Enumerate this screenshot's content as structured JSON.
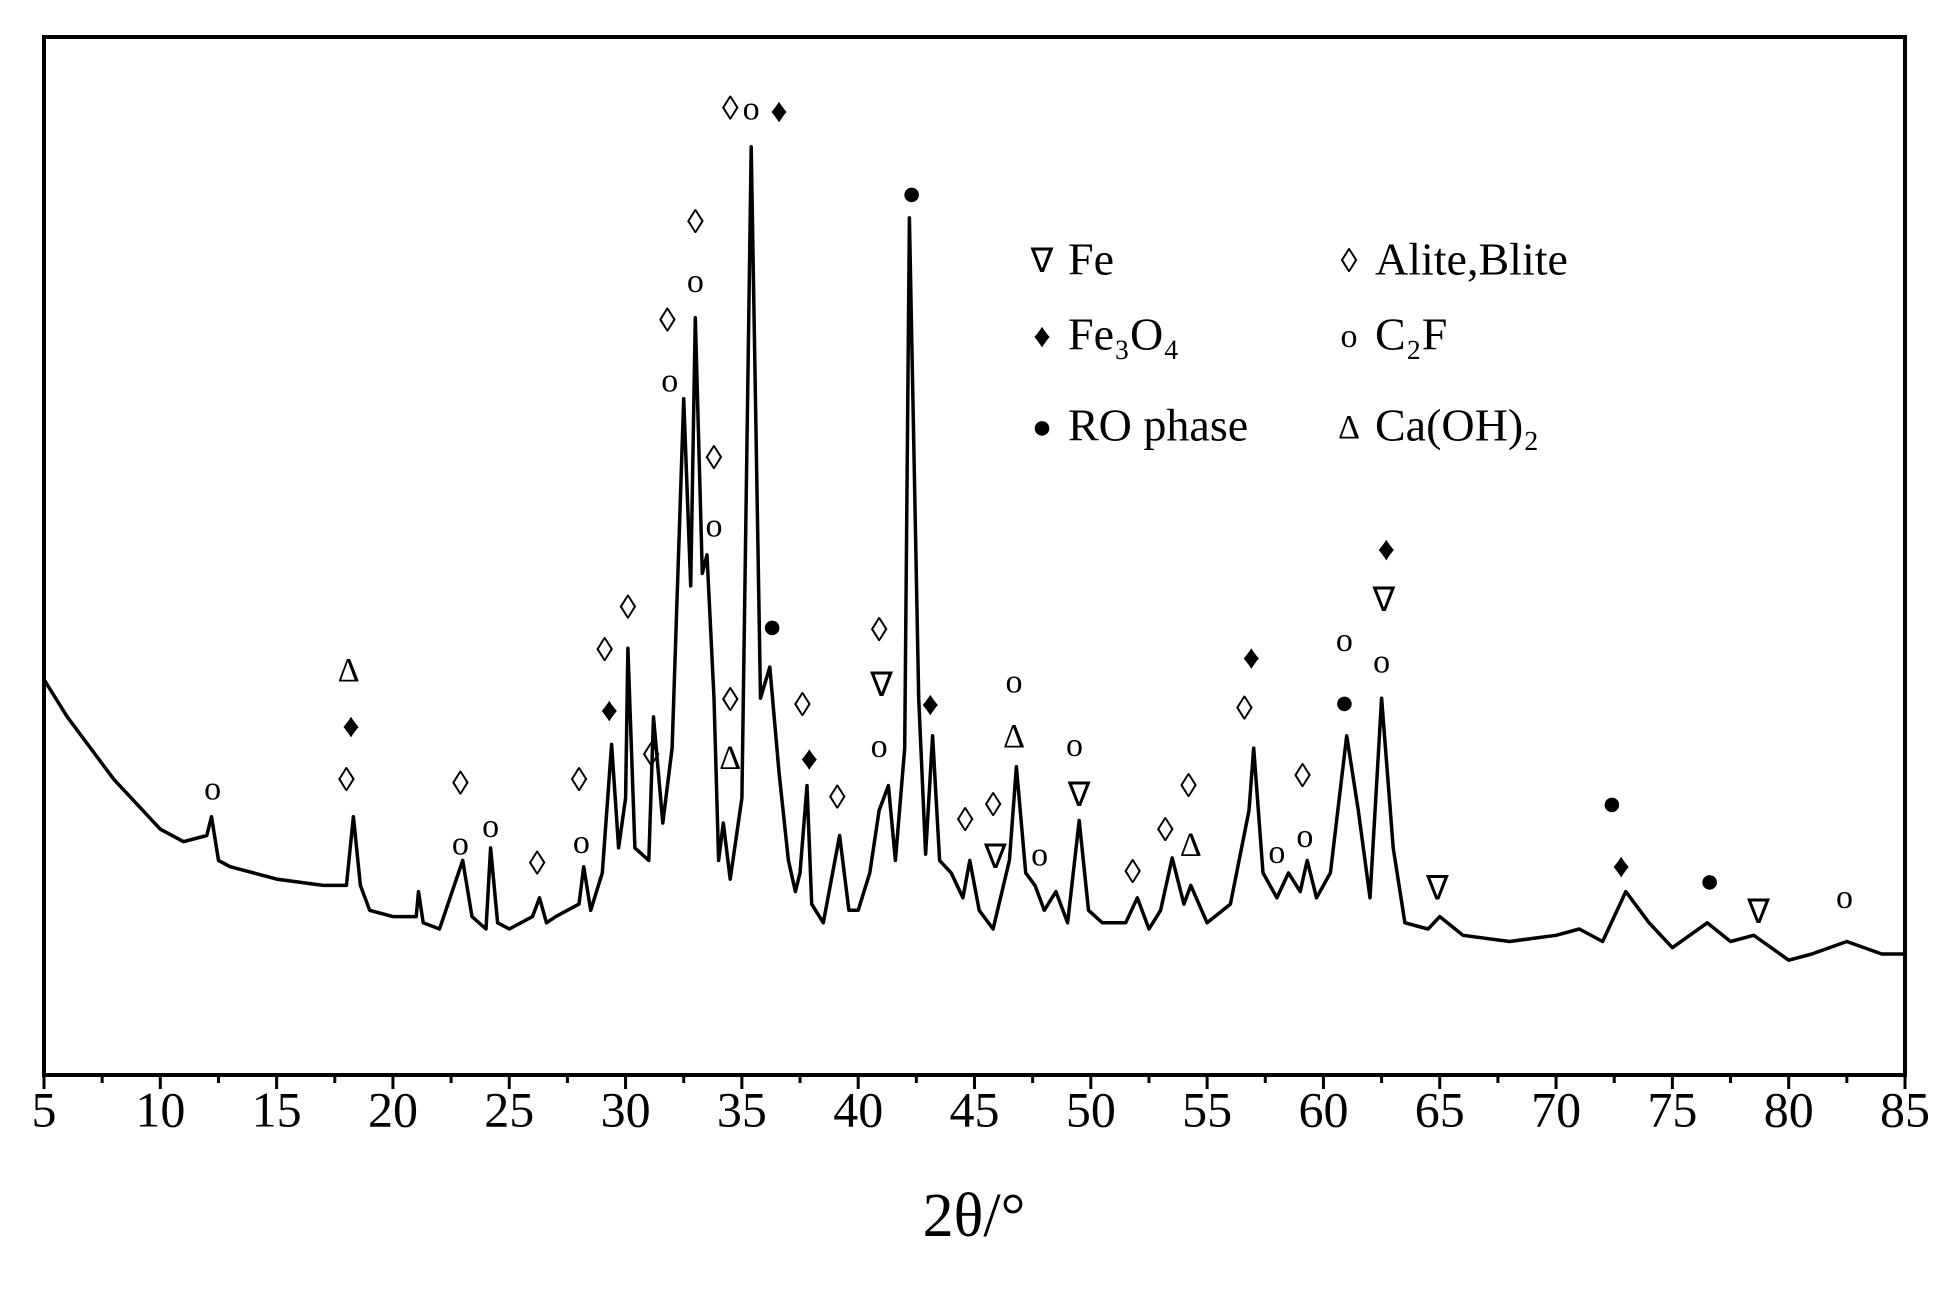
{
  "chart_data": {
    "type": "line",
    "x_label": "2θ/°",
    "color": "#000000",
    "xlim": [
      5,
      85
    ],
    "xticks": [
      5,
      10,
      15,
      20,
      25,
      30,
      35,
      40,
      45,
      50,
      55,
      60,
      65,
      70,
      75,
      80,
      85
    ],
    "ylim": [
      0,
      832
    ],
    "x": [
      5,
      6,
      7,
      8,
      9,
      10,
      11,
      12,
      12.2,
      12.5,
      13,
      15,
      17,
      18,
      18.3,
      18.6,
      19,
      20,
      21,
      21.1,
      21.3,
      22,
      23,
      23.4,
      24,
      24.2,
      24.5,
      25,
      26,
      26.3,
      26.6,
      27,
      28,
      28.2,
      28.5,
      29,
      29.4,
      29.7,
      30,
      30.1,
      30.4,
      31,
      31.2,
      31.6,
      32,
      32.5,
      32.8,
      33,
      33.3,
      33.5,
      33.8,
      34,
      34.2,
      34.5,
      35,
      35.4,
      35.8,
      36.2,
      36.6,
      37,
      37.3,
      37.5,
      37.8,
      38,
      38.5,
      39.2,
      39.6,
      40,
      40.5,
      40.9,
      41.3,
      41.6,
      42,
      42.2,
      42.6,
      42.9,
      43.2,
      43.5,
      44,
      44.5,
      44.8,
      45.2,
      45.8,
      46.5,
      46.8,
      47.2,
      47.6,
      48,
      48.5,
      49,
      49.5,
      49.9,
      50.5,
      51.5,
      52,
      52.5,
      53,
      53.5,
      54,
      54.3,
      55,
      56,
      56.8,
      57,
      57.4,
      58,
      58.5,
      59,
      59.3,
      59.7,
      60.3,
      61,
      61.5,
      62,
      62.5,
      63,
      63.5,
      64.5,
      65,
      66,
      68,
      70,
      71,
      72,
      73,
      74,
      75,
      76.5,
      77.5,
      78.5,
      80,
      81,
      82.5,
      84,
      85
    ],
    "values": [
      317,
      287,
      262,
      237,
      217,
      197,
      187,
      192,
      207,
      172,
      167,
      157,
      152,
      152,
      207,
      152,
      132,
      127,
      127,
      147,
      122,
      117,
      172,
      127,
      117,
      182,
      122,
      117,
      127,
      142,
      122,
      127,
      137,
      167,
      132,
      162,
      265,
      182,
      222,
      342,
      182,
      172,
      287,
      202,
      262,
      542,
      392,
      607,
      402,
      417,
      302,
      172,
      202,
      157,
      222,
      744,
      302,
      327,
      242,
      172,
      147,
      162,
      232,
      137,
      122,
      192,
      132,
      132,
      162,
      212,
      232,
      172,
      262,
      687,
      302,
      177,
      272,
      172,
      162,
      142,
      172,
      132,
      117,
      172,
      247,
      162,
      152,
      132,
      147,
      122,
      204,
      132,
      122,
      122,
      142,
      117,
      132,
      174,
      137,
      152,
      122,
      137,
      212,
      262,
      162,
      142,
      162,
      147,
      172,
      142,
      162,
      272,
      212,
      142,
      302,
      182,
      122,
      117,
      127,
      112,
      107,
      112,
      117,
      107,
      147,
      122,
      102,
      122,
      107,
      112,
      92,
      97,
      107,
      97,
      97
    ],
    "annotations": [
      {
        "text": "o",
        "x": 12.25,
        "y": 227
      },
      {
        "text": "Δ",
        "x": 18.1,
        "y": 322
      },
      {
        "text": "♦",
        "x": 18.2,
        "y": 277
      },
      {
        "text": "◊",
        "x": 18.0,
        "y": 234
      },
      {
        "text": "◊",
        "x": 22.9,
        "y": 231
      },
      {
        "text": "o",
        "x": 22.9,
        "y": 183
      },
      {
        "text": "o",
        "x": 24.2,
        "y": 197
      },
      {
        "text": "◊",
        "x": 26.2,
        "y": 167
      },
      {
        "text": "◊",
        "x": 28.0,
        "y": 234
      },
      {
        "text": "o",
        "x": 28.1,
        "y": 184
      },
      {
        "text": "◊",
        "x": 29.1,
        "y": 338
      },
      {
        "text": "♦",
        "x": 29.3,
        "y": 290
      },
      {
        "text": "◊",
        "x": 30.1,
        "y": 372
      },
      {
        "text": "◊",
        "x": 31.1,
        "y": 254
      },
      {
        "text": "o",
        "x": 31.9,
        "y": 554
      },
      {
        "text": "◊",
        "x": 31.8,
        "y": 602
      },
      {
        "text": "o",
        "x": 33.0,
        "y": 634
      },
      {
        "text": "◊",
        "x": 33.0,
        "y": 681
      },
      {
        "text": "◊",
        "x": 33.8,
        "y": 492
      },
      {
        "text": "o",
        "x": 33.8,
        "y": 438
      },
      {
        "text": "◊",
        "x": 34.5,
        "y": 298
      },
      {
        "text": "Δ",
        "x": 34.5,
        "y": 252
      },
      {
        "text": "◊",
        "x": 34.5,
        "y": 772
      },
      {
        "text": "o",
        "x": 35.4,
        "y": 772
      },
      {
        "text": "♦",
        "x": 36.6,
        "y": 770
      },
      {
        "text": "●",
        "x": 36.3,
        "y": 357
      },
      {
        "text": "◊",
        "x": 37.6,
        "y": 294
      },
      {
        "text": "♦",
        "x": 37.9,
        "y": 251
      },
      {
        "text": "◊",
        "x": 39.1,
        "y": 220
      },
      {
        "text": "◊",
        "x": 40.9,
        "y": 354
      },
      {
        "text": "∇",
        "x": 41.0,
        "y": 310
      },
      {
        "text": "o",
        "x": 40.9,
        "y": 261
      },
      {
        "text": "●",
        "x": 42.3,
        "y": 704
      },
      {
        "text": "♦",
        "x": 43.1,
        "y": 295
      },
      {
        "text": "◊",
        "x": 44.6,
        "y": 202
      },
      {
        "text": "◊",
        "x": 45.8,
        "y": 214
      },
      {
        "text": "∇",
        "x": 45.9,
        "y": 172
      },
      {
        "text": "o",
        "x": 46.7,
        "y": 313
      },
      {
        "text": "Δ",
        "x": 46.7,
        "y": 269
      },
      {
        "text": "o",
        "x": 47.8,
        "y": 174
      },
      {
        "text": "o",
        "x": 49.3,
        "y": 262
      },
      {
        "text": "∇",
        "x": 49.5,
        "y": 222
      },
      {
        "text": "◊",
        "x": 51.8,
        "y": 160
      },
      {
        "text": "◊",
        "x": 53.2,
        "y": 194
      },
      {
        "text": "◊",
        "x": 54.2,
        "y": 229
      },
      {
        "text": "Δ",
        "x": 54.3,
        "y": 182
      },
      {
        "text": "♦",
        "x": 56.9,
        "y": 332
      },
      {
        "text": "◊",
        "x": 56.6,
        "y": 291
      },
      {
        "text": "o",
        "x": 58.0,
        "y": 176
      },
      {
        "text": "◊",
        "x": 59.1,
        "y": 237
      },
      {
        "text": "o",
        "x": 59.2,
        "y": 189
      },
      {
        "text": "o",
        "x": 60.9,
        "y": 346
      },
      {
        "text": "●",
        "x": 60.9,
        "y": 296
      },
      {
        "text": "♦",
        "x": 62.7,
        "y": 419
      },
      {
        "text": "∇",
        "x": 62.6,
        "y": 378
      },
      {
        "text": "o",
        "x": 62.5,
        "y": 329
      },
      {
        "text": "∇",
        "x": 64.9,
        "y": 147
      },
      {
        "text": "●",
        "x": 72.4,
        "y": 215
      },
      {
        "text": "♦",
        "x": 72.8,
        "y": 165
      },
      {
        "text": "●",
        "x": 76.6,
        "y": 153
      },
      {
        "text": "∇",
        "x": 78.7,
        "y": 128
      },
      {
        "text": "o",
        "x": 82.4,
        "y": 140
      }
    ],
    "legend_items": [
      {
        "symbol": "∇",
        "label": "Fe"
      },
      {
        "symbol": "◊",
        "label": "Alite,Blite"
      },
      {
        "symbol": "♦",
        "label": "Fe₃O₄"
      },
      {
        "symbol": "o",
        "label": "C₂F"
      },
      {
        "symbol": "●",
        "label": "RO phase"
      },
      {
        "symbol": "Δ",
        "label": "Ca(OH)₂"
      }
    ]
  }
}
